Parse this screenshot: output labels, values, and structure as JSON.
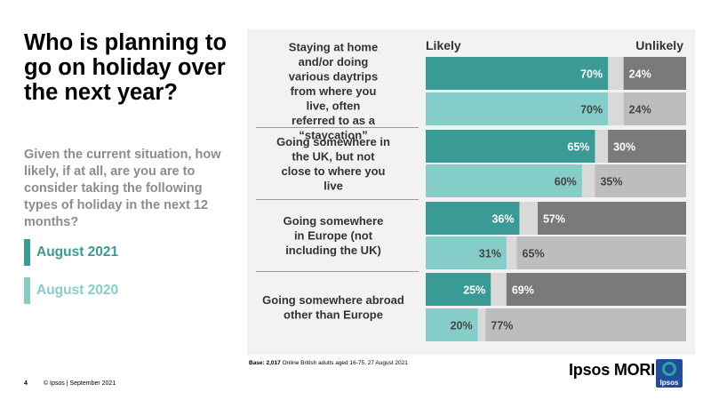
{
  "title": "Who is planning to go on holiday over the next year?",
  "subtitle": "Given the current situation, how likely, if at all, are you are to consider taking the following types of holiday in the next 12 months?",
  "legend": [
    {
      "label": "August 2021",
      "color": "#3a9b96"
    },
    {
      "label": "August 2020",
      "color": "#85cdc9"
    }
  ],
  "chart_data": {
    "type": "bar",
    "orientation": "horizontal-stacked",
    "header_left": "Likely",
    "header_right": "Unlikely",
    "categories": [
      "Staying at home and/or doing various daytrips from where you live, often referred to as a “staycation”",
      "Going somewhere in the UK, but not close to where you live",
      "Going somewhere in Europe (not including the UK)",
      "Going somewhere abroad other than Europe"
    ],
    "series": [
      {
        "name": "August 2021",
        "likely": [
          70,
          65,
          36,
          25
        ],
        "unlikely": [
          24,
          30,
          57,
          69
        ]
      },
      {
        "name": "August 2020",
        "likely": [
          70,
          60,
          31,
          20
        ],
        "unlikely": [
          24,
          35,
          65,
          77
        ]
      }
    ],
    "value_suffix": "%",
    "xlim": [
      0,
      100
    ],
    "colors": {
      "likely_2021": "#3a9b96",
      "likely_2020": "#85cdc9",
      "unlikely_2021": "#7a7a7a",
      "unlikely_2020": "#bdbdbd",
      "neutral_gap": "#d9d9d9",
      "panel_bg": "#f2f2f2"
    }
  },
  "base_note": {
    "bold": "Base: 2,017",
    "text": " Online British adults aged 16-75, 27 August 2021"
  },
  "footer": {
    "page": "4",
    "copyright": "© Ipsos | September 2021"
  },
  "logo": {
    "text": "Ipsos MORI",
    "mark": "Ipsos"
  }
}
